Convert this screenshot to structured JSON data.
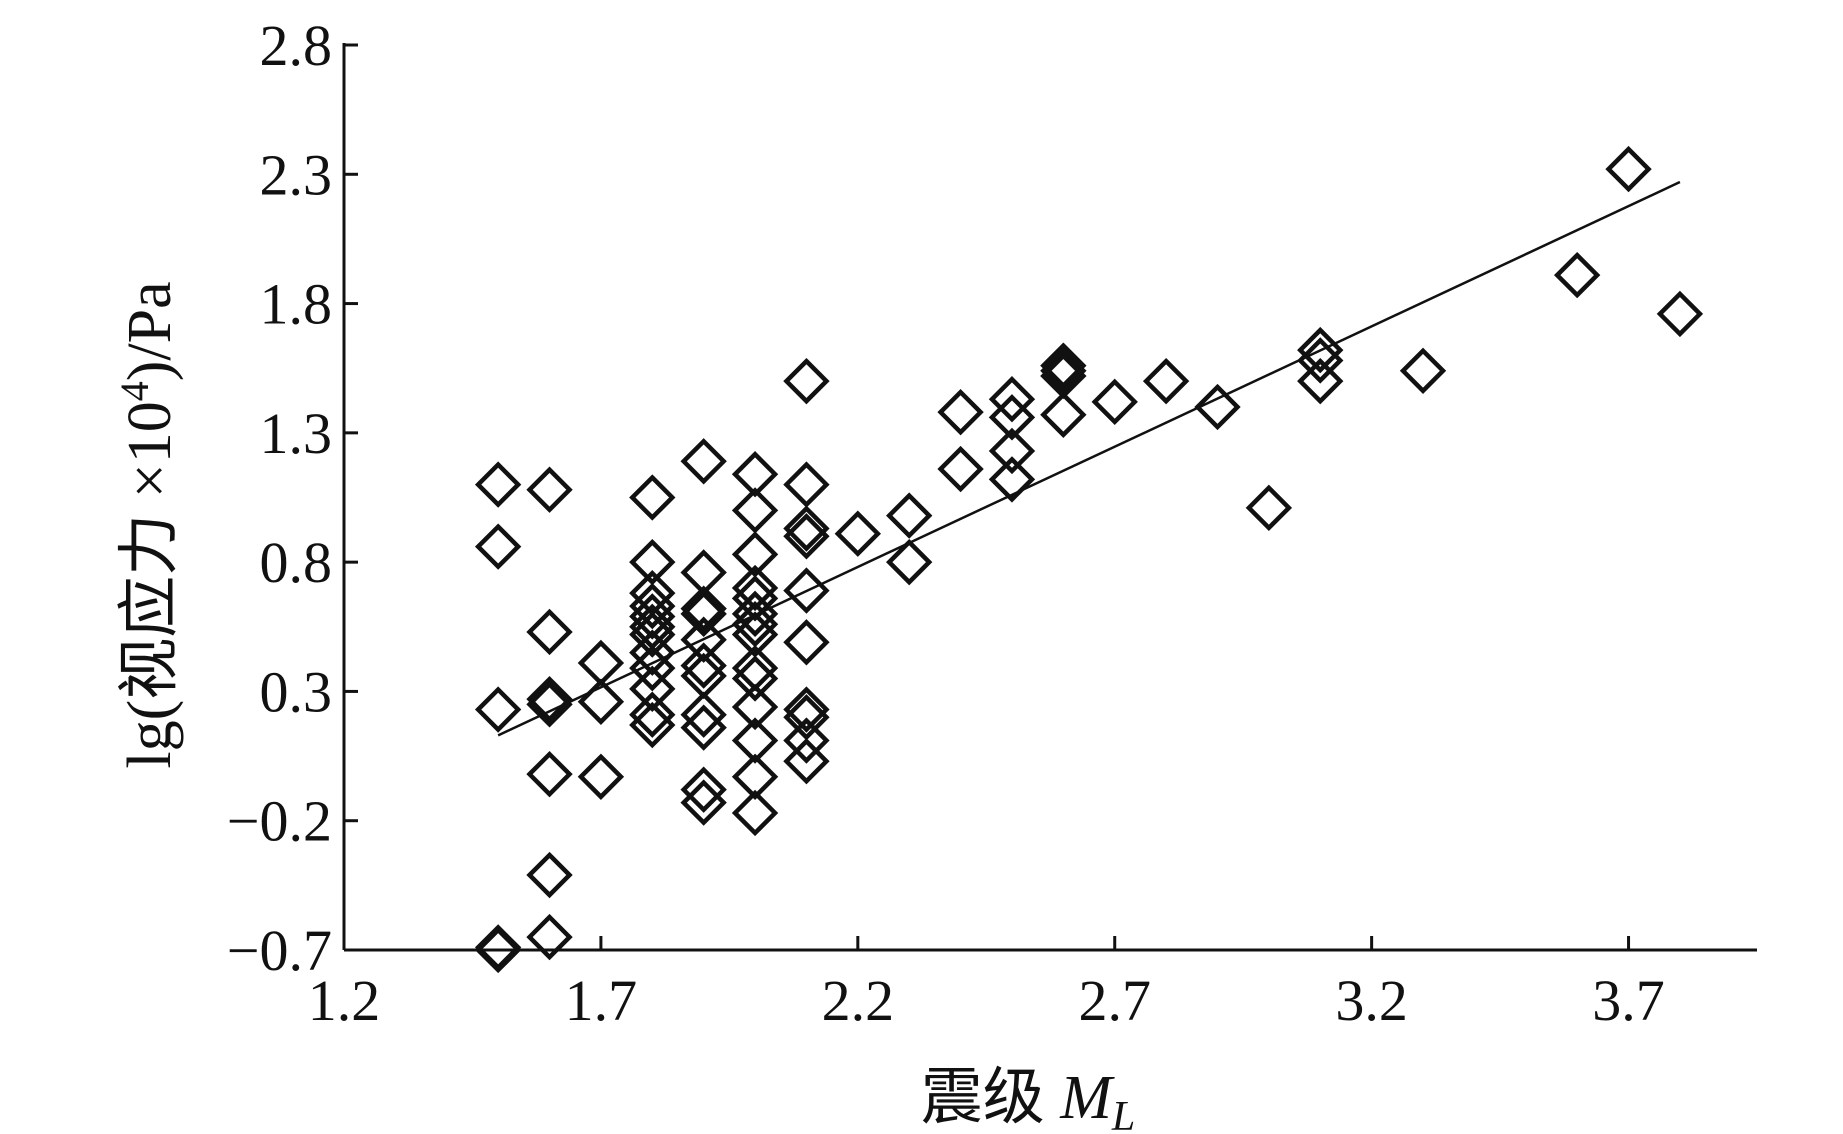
{
  "chart_data": {
    "type": "scatter",
    "title": "",
    "xlabel": "震级 M_L",
    "xlabel_main": "震级 ",
    "xlabel_var": "M",
    "xlabel_sub": "L",
    "ylabel": "lg(视应力 ×10⁴)/Pa",
    "ylabel_prefix": "lg(视应力 ×10",
    "ylabel_sup": "4",
    "ylabel_suffix": ")/Pa",
    "xlim": [
      1.2,
      3.95
    ],
    "ylim": [
      -0.7,
      2.8
    ],
    "xticks": [
      1.2,
      1.7,
      2.2,
      2.7,
      3.2,
      3.7
    ],
    "xtick_labels": [
      "1.2",
      "1.7",
      "2.2",
      "2.7",
      "3.2",
      "3.7"
    ],
    "yticks": [
      -0.7,
      -0.2,
      0.3,
      0.8,
      1.3,
      1.8,
      2.3,
      2.8
    ],
    "ytick_labels": [
      "−0.7",
      "−0.2",
      "0.3",
      "0.8",
      "1.3",
      "1.8",
      "2.3",
      "2.8"
    ],
    "grid": false,
    "marker": "diamond-open",
    "points": [
      [
        1.5,
        1.1
      ],
      [
        1.5,
        0.86
      ],
      [
        1.5,
        0.23
      ],
      [
        1.5,
        -0.69
      ],
      [
        1.5,
        -0.7
      ],
      [
        1.6,
        1.08
      ],
      [
        1.6,
        0.53
      ],
      [
        1.6,
        0.27
      ],
      [
        1.6,
        0.25
      ],
      [
        1.6,
        -0.02
      ],
      [
        1.6,
        -0.41
      ],
      [
        1.6,
        -0.65
      ],
      [
        1.7,
        0.41
      ],
      [
        1.7,
        0.26
      ],
      [
        1.7,
        -0.03
      ],
      [
        1.8,
        1.05
      ],
      [
        1.8,
        0.8
      ],
      [
        1.8,
        0.68
      ],
      [
        1.8,
        0.63
      ],
      [
        1.8,
        0.59
      ],
      [
        1.8,
        0.55
      ],
      [
        1.8,
        0.52
      ],
      [
        1.8,
        0.45
      ],
      [
        1.8,
        0.39
      ],
      [
        1.8,
        0.31
      ],
      [
        1.8,
        0.21
      ],
      [
        1.8,
        0.17
      ],
      [
        1.9,
        1.19
      ],
      [
        1.9,
        0.76
      ],
      [
        1.9,
        0.62
      ],
      [
        1.9,
        0.6
      ],
      [
        1.9,
        0.5
      ],
      [
        1.9,
        0.4
      ],
      [
        1.9,
        0.36
      ],
      [
        1.9,
        0.21
      ],
      [
        1.9,
        0.16
      ],
      [
        1.9,
        -0.08
      ],
      [
        1.9,
        -0.13
      ],
      [
        2.0,
        1.14
      ],
      [
        2.0,
        1.0
      ],
      [
        2.0,
        0.83
      ],
      [
        2.0,
        0.7
      ],
      [
        2.0,
        0.66
      ],
      [
        2.0,
        0.6
      ],
      [
        2.0,
        0.56
      ],
      [
        2.0,
        0.52
      ],
      [
        2.0,
        0.39
      ],
      [
        2.0,
        0.35
      ],
      [
        2.0,
        0.24
      ],
      [
        2.0,
        0.11
      ],
      [
        2.0,
        -0.03
      ],
      [
        2.0,
        -0.17
      ],
      [
        2.1,
        1.5
      ],
      [
        2.1,
        1.1
      ],
      [
        2.1,
        0.93
      ],
      [
        2.1,
        0.9
      ],
      [
        2.1,
        0.69
      ],
      [
        2.1,
        0.49
      ],
      [
        2.1,
        0.23
      ],
      [
        2.1,
        0.2
      ],
      [
        2.1,
        0.11
      ],
      [
        2.1,
        0.03
      ],
      [
        2.2,
        0.91
      ],
      [
        2.3,
        0.98
      ],
      [
        2.3,
        0.8
      ],
      [
        2.4,
        1.38
      ],
      [
        2.4,
        1.16
      ],
      [
        2.5,
        1.43
      ],
      [
        2.5,
        1.36
      ],
      [
        2.5,
        1.23
      ],
      [
        2.5,
        1.12
      ],
      [
        2.6,
        1.56
      ],
      [
        2.6,
        1.54
      ],
      [
        2.6,
        1.52
      ],
      [
        2.6,
        1.37
      ],
      [
        2.7,
        1.42
      ],
      [
        2.8,
        1.5
      ],
      [
        2.9,
        1.4
      ],
      [
        3.0,
        1.01
      ],
      [
        3.1,
        1.62
      ],
      [
        3.1,
        1.58
      ],
      [
        3.1,
        1.5
      ],
      [
        3.3,
        1.54
      ],
      [
        3.6,
        1.91
      ],
      [
        3.7,
        2.32
      ],
      [
        3.8,
        1.76
      ]
    ],
    "fit_line": {
      "x": [
        1.5,
        3.8
      ],
      "y": [
        0.13,
        2.27
      ]
    }
  }
}
